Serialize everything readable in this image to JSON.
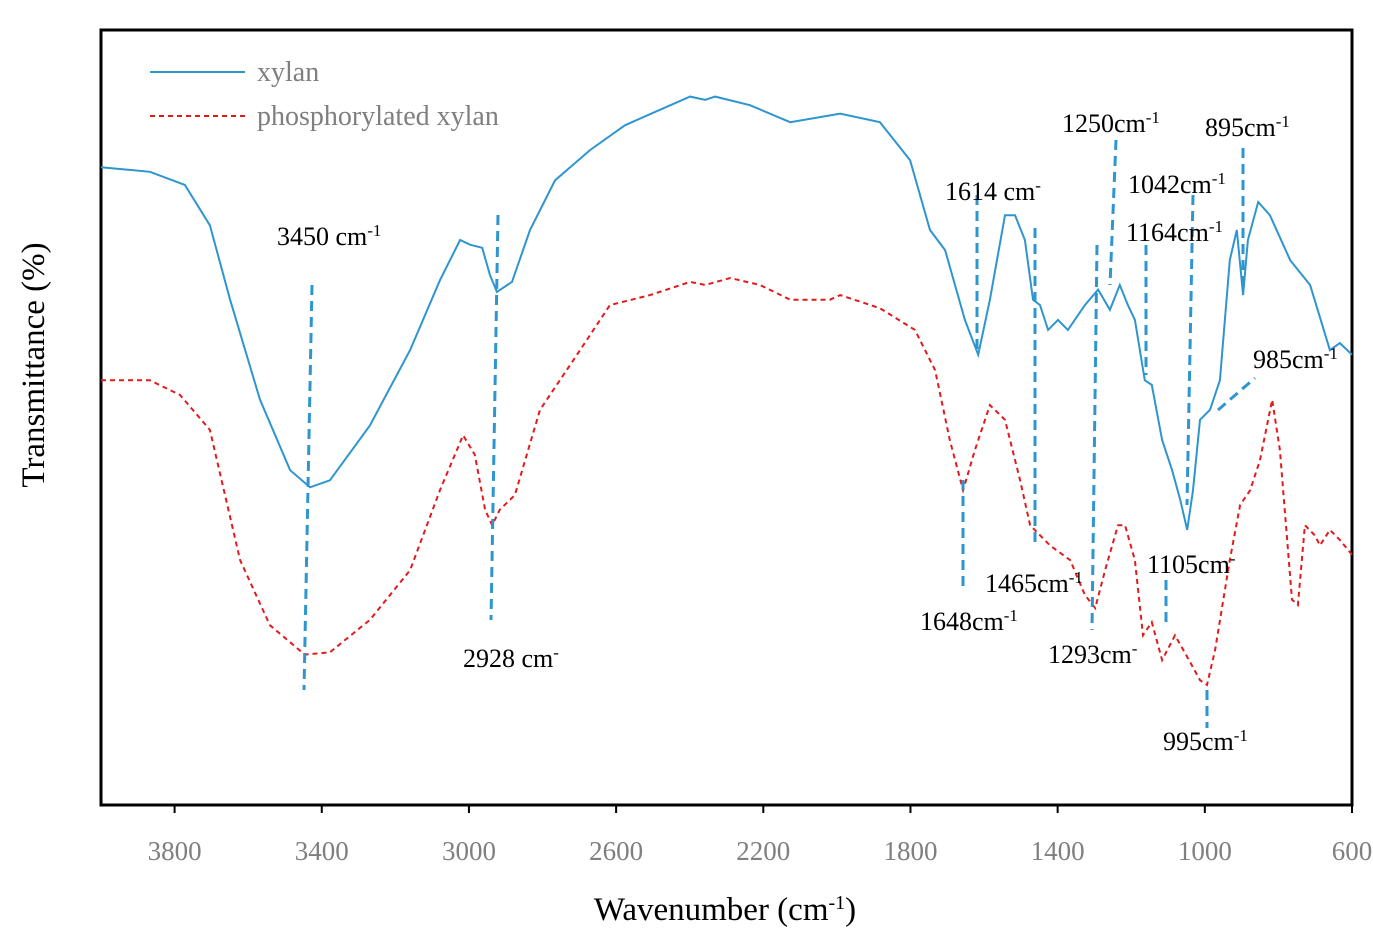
{
  "chart_data": {
    "type": "line",
    "xlabel": {
      "text": "Wavenumber (cm",
      "sup": "-1",
      "tail": ")"
    },
    "ylabel": "Transmittance (%)",
    "xlim": [
      4000,
      600
    ],
    "ylim": [
      0,
      100
    ],
    "xticks": [
      3800,
      3400,
      3000,
      2600,
      2200,
      1800,
      1400,
      1000,
      600
    ],
    "legend": "top-left",
    "series": [
      {
        "name": "xylan",
        "color": "#2e95cf",
        "dash": false,
        "x": [
          4000,
          3867,
          3772,
          3704,
          3649,
          3568,
          3486,
          3432,
          3378,
          3269,
          3160,
          3079,
          3024,
          2997,
          2964,
          2943,
          2924,
          2883,
          2834,
          2766,
          2671,
          2576,
          2481,
          2399,
          2358,
          2331,
          2236,
          2127,
          1991,
          1883,
          1801,
          1747,
          1706,
          1652,
          1616,
          1584,
          1543,
          1516,
          1489,
          1467,
          1448,
          1426,
          1399,
          1372,
          1326,
          1290,
          1258,
          1231,
          1209,
          1190,
          1163,
          1144,
          1116,
          1089,
          1067,
          1048,
          1032,
          1013,
          986,
          959,
          932,
          913,
          896,
          883,
          855,
          823,
          768,
          714,
          660,
          633,
          600
        ],
        "values": [
          82.3,
          81.7,
          80.0,
          74.8,
          65.2,
          52.3,
          43.2,
          41.0,
          41.9,
          49.0,
          58.7,
          67.7,
          72.9,
          72.3,
          71.9,
          68.4,
          66.2,
          67.5,
          74.2,
          80.6,
          84.5,
          87.7,
          89.7,
          91.4,
          91.0,
          91.4,
          90.3,
          88.1,
          89.2,
          88.1,
          83.2,
          74.2,
          71.6,
          62.6,
          58.1,
          65.2,
          76.1,
          76.1,
          72.9,
          65.2,
          64.5,
          61.3,
          62.6,
          61.3,
          64.5,
          66.5,
          63.9,
          67.1,
          64.5,
          62.6,
          54.8,
          54.2,
          47.1,
          43.2,
          39.4,
          35.5,
          40.6,
          49.7,
          51.0,
          54.8,
          70.3,
          74.2,
          65.8,
          72.9,
          77.8,
          76.1,
          70.3,
          67.1,
          58.7,
          59.6,
          58.1
        ]
      },
      {
        "name": "phosphorylated xylan",
        "color": "#e31a1c",
        "dash": true,
        "x": [
          4000,
          3867,
          3785,
          3704,
          3622,
          3541,
          3446,
          3378,
          3269,
          3160,
          3079,
          3016,
          2984,
          2956,
          2937,
          2916,
          2875,
          2807,
          2698,
          2617,
          2508,
          2399,
          2358,
          2290,
          2209,
          2127,
          2019,
          1991,
          1883,
          1788,
          1733,
          1693,
          1657,
          1625,
          1584,
          1543,
          1502,
          1475,
          1421,
          1366,
          1326,
          1298,
          1271,
          1236,
          1217,
          1190,
          1168,
          1144,
          1116,
          1081,
          1043,
          1013,
          994,
          972,
          932,
          904,
          877,
          850,
          817,
          796,
          763,
          747,
          728,
          701,
          687,
          660,
          633,
          600
        ],
        "values": [
          54.8,
          54.8,
          52.9,
          48.4,
          31.6,
          23.2,
          19.4,
          19.7,
          23.9,
          30.3,
          40.6,
          47.7,
          45.2,
          38.1,
          36.1,
          38.1,
          40.0,
          51.0,
          58.7,
          64.5,
          65.8,
          67.5,
          67.1,
          68.0,
          67.1,
          65.2,
          65.2,
          65.8,
          64.1,
          61.3,
          56.1,
          47.1,
          40.6,
          45.8,
          51.6,
          49.7,
          41.9,
          36.1,
          33.5,
          31.6,
          27.1,
          25.4,
          30.3,
          36.1,
          36.1,
          31.6,
          21.9,
          23.6,
          18.7,
          21.9,
          18.7,
          16.1,
          15.5,
          20.0,
          31.6,
          38.7,
          40.6,
          44.5,
          52.3,
          45.8,
          26.5,
          25.8,
          36.1,
          34.8,
          33.5,
          35.5,
          34.2,
          32.3
        ]
      }
    ],
    "annotations": [
      {
        "text": "3450 cm",
        "sup": "-1"
      },
      {
        "text": "2928 cm",
        "sup": "-"
      },
      {
        "text": "1614 cm",
        "sup": "-"
      },
      {
        "text": "1648cm",
        "sup": "-1"
      },
      {
        "text": "1465cm",
        "sup": "-1"
      },
      {
        "text": "1293cm",
        "sup": "-"
      },
      {
        "text": "1250cm",
        "sup": "-1"
      },
      {
        "text": "1042cm",
        "sup": "-1"
      },
      {
        "text": "1164cm",
        "sup": "-1"
      },
      {
        "text": "895cm",
        "sup": "-1"
      },
      {
        "text": "985cm",
        "sup": "-1"
      },
      {
        "text": "1105cm",
        "sup": "-"
      },
      {
        "text": "995cm",
        "sup": "-1"
      }
    ]
  }
}
